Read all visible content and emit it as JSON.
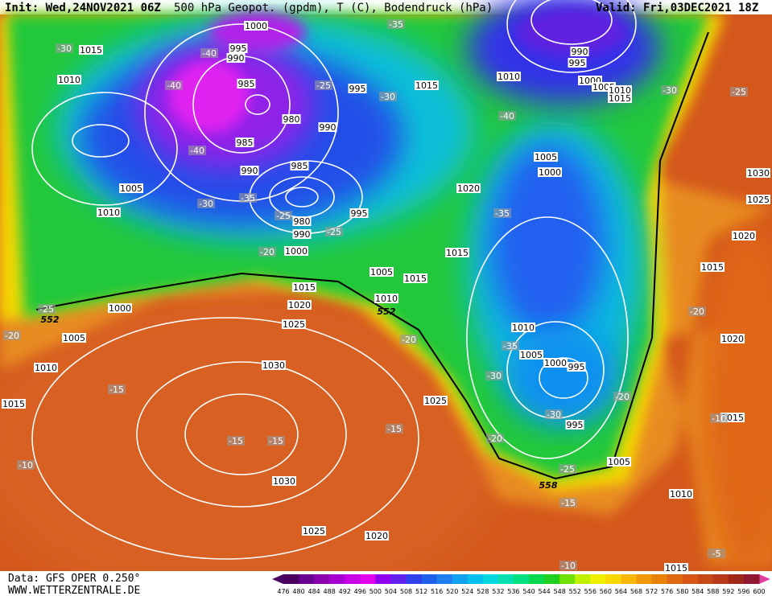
{
  "header": {
    "init": "Init: Wed,24NOV2021 06Z",
    "title": "500 hPa Geopot. (gpdm), T (C), Bodendruck (hPa)",
    "valid": "Valid: Fri,03DEC2021 18Z"
  },
  "footer": {
    "source": "Data: GFS OPER 0.250°",
    "site": "WWW.WETTERZENTRALE.DE"
  },
  "colorbar": {
    "ticks": [
      476,
      480,
      484,
      488,
      492,
      496,
      500,
      504,
      508,
      512,
      516,
      520,
      524,
      528,
      532,
      536,
      540,
      544,
      548,
      552,
      556,
      560,
      564,
      568,
      572,
      576,
      580,
      584,
      588,
      592,
      596,
      600
    ],
    "colors": [
      "#4a0060",
      "#6a0090",
      "#8a00b0",
      "#a800d0",
      "#c800e8",
      "#e000f0",
      "#9000f0",
      "#6020f0",
      "#3040f0",
      "#2060f0",
      "#2080f0",
      "#10a0f0",
      "#00c0f0",
      "#00d8e0",
      "#00e0b0",
      "#00e080",
      "#00d850",
      "#20d020",
      "#70e000",
      "#c0f000",
      "#f0f000",
      "#f8d800",
      "#f8b800",
      "#f09800",
      "#e88000",
      "#e06810",
      "#d85818",
      "#c84818",
      "#b83818",
      "#a02818",
      "#901830"
    ]
  },
  "isobar_labels": [
    1000,
    1015,
    995,
    990,
    1010,
    985,
    995,
    1015,
    1010,
    990,
    995,
    1000,
    1005,
    1010,
    1015,
    980,
    990,
    985,
    990,
    985,
    1005,
    1000,
    1005,
    1020,
    1010,
    980,
    995,
    990,
    1015,
    1000,
    1005,
    1015,
    1015,
    1010,
    1020,
    1000,
    1025,
    1005,
    1010,
    1005,
    1000,
    995,
    1010,
    1030,
    1025,
    995,
    1015,
    1030,
    1005,
    1010,
    1025,
    1020,
    1015,
    1030,
    1025,
    1020,
    1015,
    1020,
    1015
  ],
  "temperature_labels": [
    -30,
    -35,
    -40,
    -40,
    -25,
    -30,
    -40,
    -40,
    -30,
    -25,
    -35,
    -30,
    -25,
    -35,
    -25,
    -20,
    -25,
    -20,
    -20,
    -35,
    -30,
    -20,
    -20,
    -30,
    -15,
    -15,
    -15,
    -15,
    -20,
    -25,
    -15,
    -10,
    -10,
    -5,
    -10
  ],
  "height_labels": [
    552,
    552,
    558
  ]
}
